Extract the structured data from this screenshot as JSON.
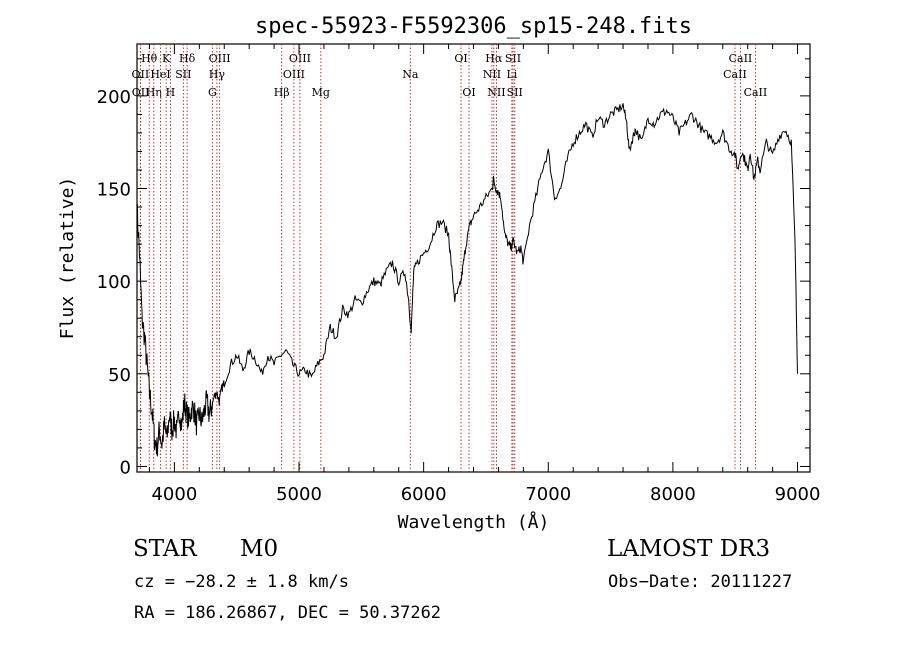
{
  "chart_data": {
    "type": "line",
    "title": "spec-55923-F5592306_sp15-248.fits",
    "xlabel": "Wavelength (Å)",
    "ylabel": "Flux (relative)",
    "xlim": [
      3700,
      9100
    ],
    "ylim": [
      -3,
      228
    ],
    "xticks": [
      4000,
      5000,
      6000,
      7000,
      8000,
      9000
    ],
    "yticks": [
      0,
      50,
      100,
      150,
      200
    ],
    "grid": false,
    "series": [
      {
        "name": "spectrum",
        "x": [
          3700,
          3720,
          3740,
          3760,
          3780,
          3800,
          3820,
          3840,
          3860,
          3880,
          3900,
          3920,
          3940,
          3960,
          3980,
          4000,
          4020,
          4040,
          4060,
          4080,
          4100,
          4120,
          4140,
          4160,
          4180,
          4200,
          4220,
          4240,
          4260,
          4280,
          4300,
          4320,
          4340,
          4360,
          4380,
          4400,
          4450,
          4500,
          4550,
          4600,
          4650,
          4700,
          4750,
          4800,
          4850,
          4900,
          4950,
          5000,
          5050,
          5100,
          5150,
          5200,
          5250,
          5300,
          5350,
          5400,
          5450,
          5500,
          5550,
          5600,
          5650,
          5700,
          5750,
          5800,
          5850,
          5880,
          5900,
          5920,
          5950,
          6000,
          6050,
          6100,
          6150,
          6200,
          6220,
          6250,
          6280,
          6300,
          6320,
          6340,
          6370,
          6400,
          6450,
          6500,
          6550,
          6560,
          6580,
          6600,
          6620,
          6650,
          6680,
          6700,
          6720,
          6750,
          6780,
          6800,
          6850,
          6900,
          6950,
          7000,
          7050,
          7100,
          7150,
          7200,
          7250,
          7300,
          7350,
          7400,
          7450,
          7500,
          7550,
          7600,
          7630,
          7650,
          7680,
          7700,
          7750,
          7800,
          7850,
          7900,
          7950,
          8000,
          8050,
          8100,
          8150,
          8200,
          8250,
          8300,
          8350,
          8400,
          8450,
          8500,
          8520,
          8550,
          8580,
          8600,
          8620,
          8650,
          8680,
          8700,
          8750,
          8800,
          8850,
          8900,
          8950,
          8980,
          9000
        ],
        "y": [
          140,
          115,
          80,
          70,
          55,
          40,
          30,
          15,
          10,
          20,
          12,
          22,
          15,
          28,
          20,
          25,
          18,
          30,
          22,
          35,
          28,
          25,
          32,
          30,
          22,
          28,
          24,
          30,
          35,
          28,
          32,
          38,
          40,
          35,
          42,
          45,
          55,
          60,
          52,
          62,
          58,
          50,
          60,
          55,
          60,
          62,
          55,
          50,
          52,
          48,
          55,
          60,
          75,
          70,
          85,
          82,
          90,
          88,
          95,
          100,
          98,
          105,
          110,
          100,
          105,
          90,
          72,
          105,
          110,
          115,
          120,
          130,
          132,
          125,
          110,
          90,
          95,
          100,
          110,
          120,
          130,
          135,
          140,
          145,
          150,
          155,
          150,
          148,
          145,
          125,
          120,
          118,
          122,
          115,
          118,
          110,
          130,
          145,
          160,
          170,
          145,
          150,
          165,
          175,
          180,
          185,
          178,
          188,
          185,
          190,
          192,
          195,
          185,
          170,
          178,
          182,
          175,
          188,
          185,
          190,
          192,
          188,
          180,
          185,
          190,
          185,
          180,
          178,
          175,
          180,
          172,
          168,
          160,
          170,
          165,
          160,
          170,
          155,
          165,
          160,
          175,
          168,
          178,
          182,
          175,
          120,
          50
        ]
      }
    ],
    "lines": [
      {
        "name": "Hθ",
        "wavelength": 3798,
        "row": 1
      },
      {
        "name": "OII",
        "wavelength": 3727,
        "row": 2
      },
      {
        "name": "OII",
        "wavelength": 3729,
        "row": 3
      },
      {
        "name": "Hη",
        "wavelength": 3835,
        "row": 3
      },
      {
        "name": "HeI",
        "wavelength": 3889,
        "row": 2
      },
      {
        "name": "K",
        "wavelength": 3934,
        "row": 1
      },
      {
        "name": "H",
        "wavelength": 3968,
        "row": 3
      },
      {
        "name": "Hδ",
        "wavelength": 4102,
        "row": 1
      },
      {
        "name": "SII",
        "wavelength": 4072,
        "row": 2
      },
      {
        "name": "OIII",
        "wavelength": 4363,
        "row": 1
      },
      {
        "name": "Hγ",
        "wavelength": 4341,
        "row": 2
      },
      {
        "name": "G",
        "wavelength": 4305,
        "row": 3
      },
      {
        "name": "Hβ",
        "wavelength": 4861,
        "row": 3
      },
      {
        "name": "OIII",
        "wavelength": 5007,
        "row": 1
      },
      {
        "name": "OIII",
        "wavelength": 4959,
        "row": 2
      },
      {
        "name": "Mg",
        "wavelength": 5175,
        "row": 3
      },
      {
        "name": "Na",
        "wavelength": 5893,
        "row": 2
      },
      {
        "name": "OI",
        "wavelength": 6300,
        "row": 1
      },
      {
        "name": "OI",
        "wavelength": 6364,
        "row": 3
      },
      {
        "name": "Hα",
        "wavelength": 6563,
        "row": 1
      },
      {
        "name": "NII",
        "wavelength": 6548,
        "row": 2
      },
      {
        "name": "NII",
        "wavelength": 6584,
        "row": 3
      },
      {
        "name": "SII",
        "wavelength": 6717,
        "row": 1
      },
      {
        "name": "Li",
        "wavelength": 6708,
        "row": 2
      },
      {
        "name": "SII",
        "wavelength": 6731,
        "row": 3
      },
      {
        "name": "CaII",
        "wavelength": 8542,
        "row": 1
      },
      {
        "name": "CaII",
        "wavelength": 8498,
        "row": 2
      },
      {
        "name": "CaII",
        "wavelength": 8662,
        "row": 3
      }
    ]
  },
  "info": {
    "class": "STAR",
    "subclass": "M0",
    "survey": "LAMOST DR3",
    "cz": "cz = −28.2 ± 1.8 km/s",
    "obs_date": "Obs−Date: 20111227",
    "coords": "RA = 186.26867, DEC =  50.37262"
  },
  "colors": {
    "axis": "#000000",
    "spectrum": "#000000",
    "lines": "#b22222"
  }
}
